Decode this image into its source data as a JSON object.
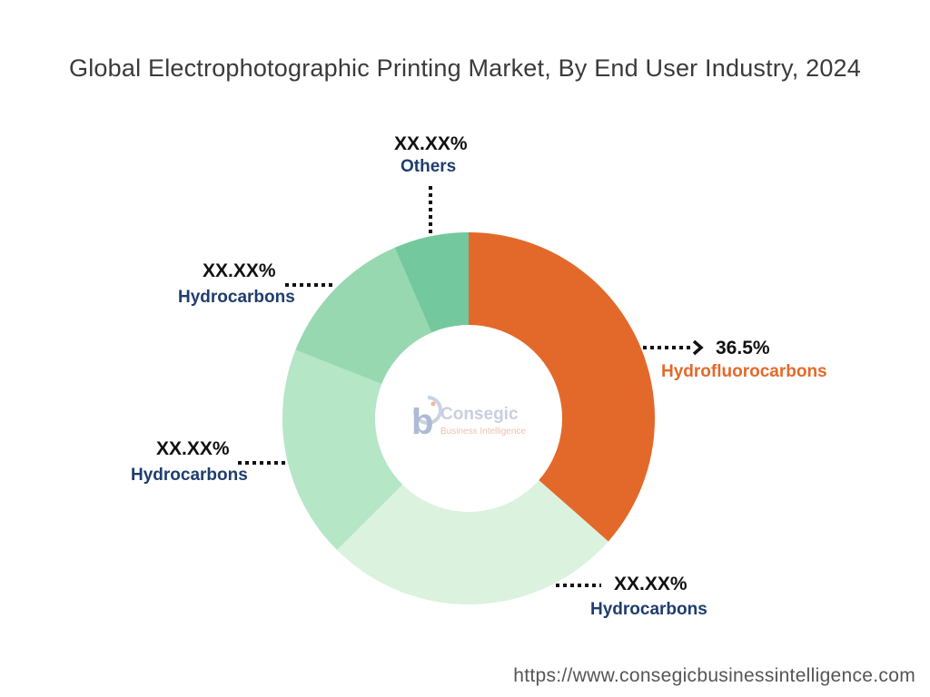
{
  "title": "Global Electrophotographic Printing Market, By End User Industry, 2024",
  "footer_url": "https://www.consegicbusinessintelligence.com",
  "logo": {
    "name": "Consegic",
    "tagline": "Business Intelligence",
    "mark": "b"
  },
  "colors": {
    "accent": "#e3692a",
    "label_blue": "#1f3d6e"
  },
  "chart_data": {
    "type": "pie",
    "style": "donut",
    "title": "Global Electrophotographic Printing Market, By End User Industry, 2024",
    "slices": [
      {
        "name": "Hydrofluorocarbons",
        "value": 36.5,
        "label": "36.5%",
        "color": "#e3692a"
      },
      {
        "name": "Hydrocarbons",
        "value": 26.0,
        "label": "XX.XX%",
        "color": "#daf2de"
      },
      {
        "name": "Hydrocarbons",
        "value": 18.5,
        "label": "XX.XX%",
        "color": "#b5e6c6"
      },
      {
        "name": "Hydrocarbons",
        "value": 12.5,
        "label": "XX.XX%",
        "color": "#97d8b0"
      },
      {
        "name": "Others",
        "value": 6.5,
        "label": "XX.XX%",
        "color": "#74c89d"
      }
    ]
  }
}
